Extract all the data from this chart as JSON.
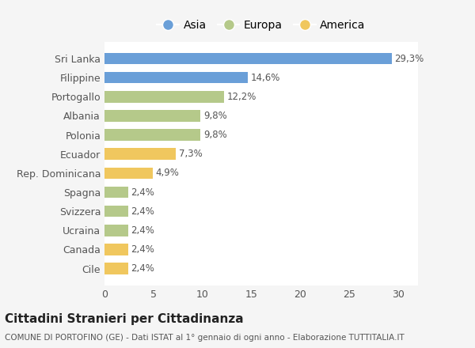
{
  "categories": [
    "Cile",
    "Canada",
    "Ucraina",
    "Svizzera",
    "Spagna",
    "Rep. Dominicana",
    "Ecuador",
    "Polonia",
    "Albania",
    "Portogallo",
    "Filippine",
    "Sri Lanka"
  ],
  "values": [
    2.4,
    2.4,
    2.4,
    2.4,
    2.4,
    4.9,
    7.3,
    9.8,
    9.8,
    12.2,
    14.6,
    29.3
  ],
  "colors": [
    "#f0c75e",
    "#f0c75e",
    "#b5c98a",
    "#b5c98a",
    "#b5c98a",
    "#f0c75e",
    "#f0c75e",
    "#b5c98a",
    "#b5c98a",
    "#b5c98a",
    "#6a9fd8",
    "#6a9fd8"
  ],
  "labels": [
    "2,4%",
    "2,4%",
    "2,4%",
    "2,4%",
    "2,4%",
    "4,9%",
    "7,3%",
    "9,8%",
    "9,8%",
    "12,2%",
    "14,6%",
    "29,3%"
  ],
  "legend": [
    {
      "label": "Asia",
      "color": "#6a9fd8"
    },
    {
      "label": "Europa",
      "color": "#b5c98a"
    },
    {
      "label": "America",
      "color": "#f0c75e"
    }
  ],
  "title": "Cittadini Stranieri per Cittadinanza",
  "subtitle": "COMUNE DI PORTOFINO (GE) - Dati ISTAT al 1° gennaio di ogni anno - Elaborazione TUTTITALIA.IT",
  "xlim": [
    0,
    32
  ],
  "xticks": [
    0,
    5,
    10,
    15,
    20,
    25,
    30
  ],
  "background_color": "#f5f5f5",
  "bar_background": "#ffffff",
  "grid_color": "#ffffff",
  "text_color": "#555555",
  "label_color": "#555555"
}
